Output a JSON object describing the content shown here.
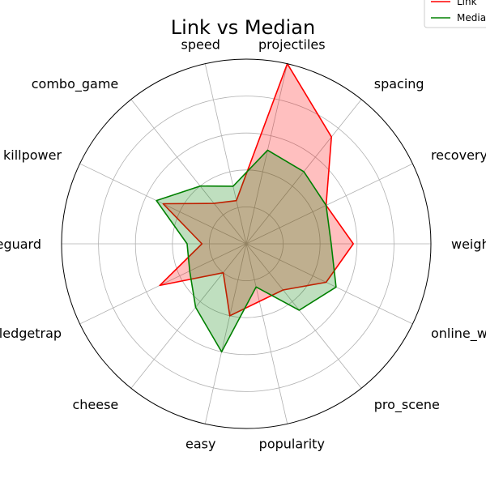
{
  "chart_data": {
    "type": "radar",
    "title": "Link vs Median",
    "axes": [
      "weight",
      "recovery",
      "spacing",
      "projectiles",
      "speed",
      "combo_game",
      "killpower",
      "edgeguard",
      "ledgetrap",
      "cheese",
      "easy",
      "popularity",
      "pro_scene",
      "online_winrate"
    ],
    "rmax": 5,
    "rings": [
      1,
      2,
      3,
      4,
      5
    ],
    "grid": true,
    "legend_position": "top-right",
    "series": [
      {
        "name": "Link",
        "color": "#ff0000",
        "fill": "#ff0000",
        "values": [
          2.9,
          2.4,
          3.7,
          5.0,
          1.2,
          1.4,
          2.5,
          1.2,
          2.6,
          1.0,
          2.0,
          1.6,
          1.6,
          2.4
        ]
      },
      {
        "name": "Median",
        "color": "#008000",
        "fill": "#008000",
        "values": [
          2.3,
          2.4,
          2.5,
          2.6,
          1.6,
          2.0,
          2.7,
          1.6,
          1.7,
          2.2,
          3.0,
          1.2,
          2.3,
          2.7
        ]
      }
    ]
  }
}
